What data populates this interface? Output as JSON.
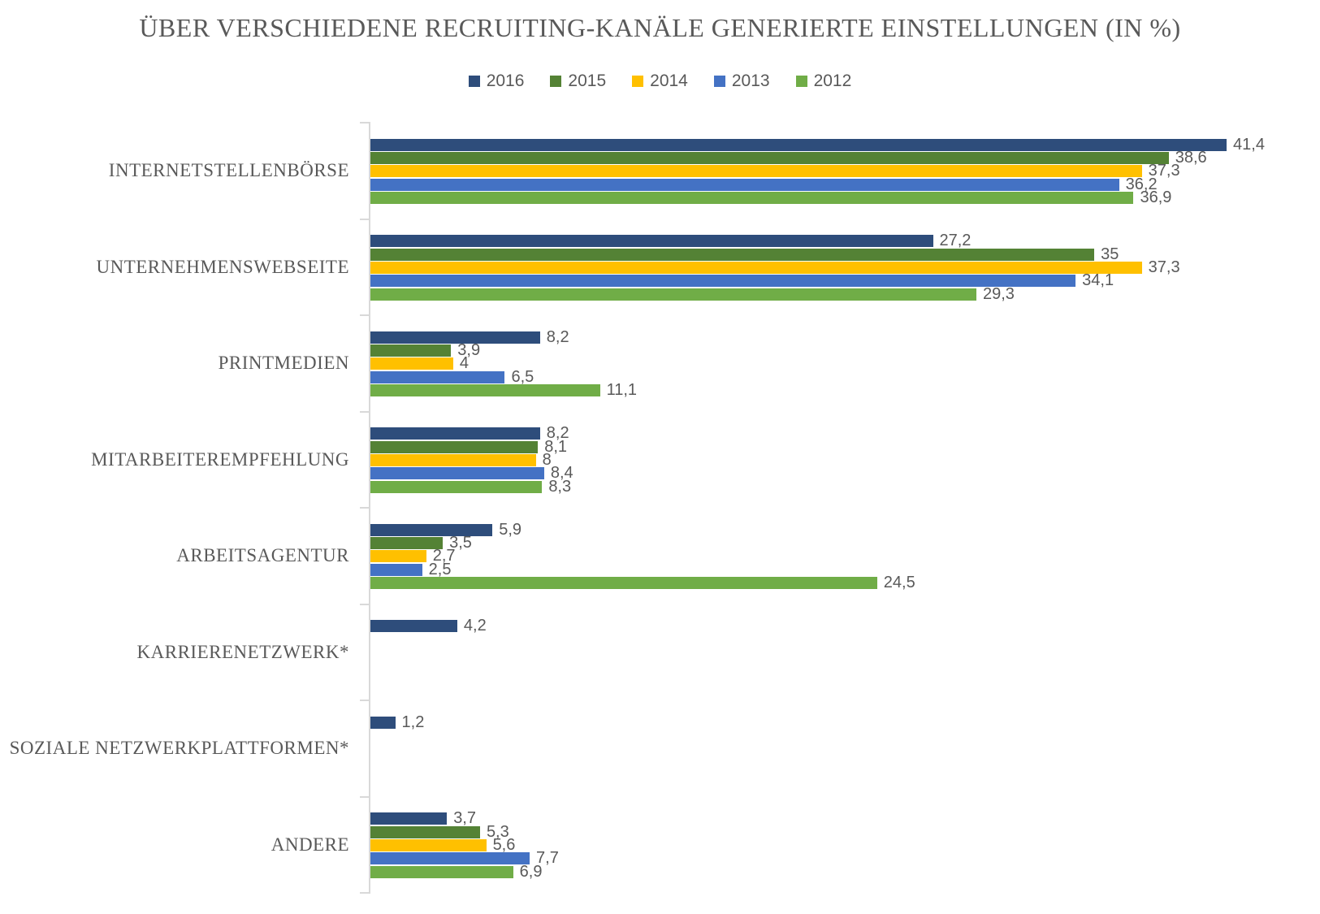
{
  "title": "ÜBER VERSCHIEDENE RECRUITING-KANÄLE GENERIERTE EINSTELLUNGEN (IN %)",
  "colors": {
    "text": "#595959",
    "axis": "#D9D9D9",
    "background": "#FFFFFF"
  },
  "chart_data": {
    "type": "bar",
    "orientation": "horizontal",
    "title": "ÜBER VERSCHIEDENE RECRUITING-KANÄLE GENERIERTE EINSTELLUNGEN (IN %)",
    "legend_position": "top-center",
    "grid": false,
    "xlim": [
      0,
      45
    ],
    "value_format": "decimal-comma",
    "categories": [
      "INTERNETSTELLENBÖRSE",
      "UNTERNEHMENSWEBSEITE",
      "PRINTMEDIEN",
      "MITARBEITEREMPFEHLUNG",
      "ARBEITSAGENTUR",
      "KARRIERENETZWERK*",
      "SOZIALE NETZWERKPLATTFORMEN*",
      "ANDERE"
    ],
    "series": [
      {
        "name": "2016",
        "color": "#2E4D7B",
        "values": [
          41.4,
          27.2,
          8.2,
          8.2,
          5.9,
          4.2,
          1.2,
          3.7
        ],
        "labels": [
          "41,4",
          "27,2",
          "8,2",
          "8,2",
          "5,9",
          "4,2",
          "1,2",
          "3,7"
        ]
      },
      {
        "name": "2015",
        "color": "#548235",
        "values": [
          38.6,
          35,
          3.9,
          8.1,
          3.5,
          null,
          null,
          5.3
        ],
        "labels": [
          "38,6",
          "35",
          "3,9",
          "8,1",
          "3,5",
          null,
          null,
          "5,3"
        ]
      },
      {
        "name": "2014",
        "color": "#FFC000",
        "values": [
          37.3,
          37.3,
          4,
          8,
          2.7,
          null,
          null,
          5.6
        ],
        "labels": [
          "37,3",
          "37,3",
          "4",
          "8",
          "2,7",
          null,
          null,
          "5,6"
        ]
      },
      {
        "name": "2013",
        "color": "#4472C4",
        "values": [
          36.2,
          34.1,
          6.5,
          8.4,
          2.5,
          null,
          null,
          7.7
        ],
        "labels": [
          "36,2",
          "34,1",
          "6,5",
          "8,4",
          "2,5",
          null,
          null,
          "7,7"
        ]
      },
      {
        "name": "2012",
        "color": "#70AD47",
        "values": [
          36.9,
          29.3,
          11.1,
          8.3,
          24.5,
          null,
          null,
          6.9
        ],
        "labels": [
          "36,9",
          "29,3",
          "11,1",
          "8,3",
          "24,5",
          null,
          null,
          "6,9"
        ]
      }
    ]
  }
}
